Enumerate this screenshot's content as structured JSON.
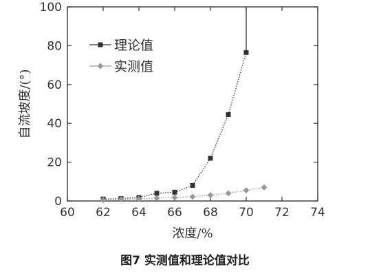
{
  "caption": "图7  实测值和理论值对比",
  "chart_data": {
    "type": "line",
    "xlabel": "浓度/%",
    "ylabel": "自流坡度/(°)",
    "xlim": [
      60,
      74
    ],
    "ylim": [
      0,
      100
    ],
    "xticks": [
      60,
      62,
      64,
      66,
      68,
      70,
      72,
      74
    ],
    "yticks": [
      0,
      20,
      40,
      60,
      80,
      100
    ],
    "legend_position": "top-left",
    "series": [
      {
        "name": "理论值",
        "marker": "square",
        "color": "#333333",
        "points": [
          {
            "x": 62,
            "y": 1.0
          },
          {
            "x": 63,
            "y": 1.2
          },
          {
            "x": 64,
            "y": 1.8
          },
          {
            "x": 65,
            "y": 4.0
          },
          {
            "x": 66,
            "y": 4.5
          },
          {
            "x": 67,
            "y": 8.0
          },
          {
            "x": 68,
            "y": 22.0
          },
          {
            "x": 69,
            "y": 44.5
          },
          {
            "x": 70,
            "y": 76.5
          }
        ],
        "tail": [
          {
            "x": 70,
            "y": 76.5
          },
          {
            "x": 70,
            "y": 100
          }
        ]
      },
      {
        "name": "实测值",
        "marker": "diamond",
        "color": "#999999",
        "points": [
          {
            "x": 62,
            "y": 0.5
          },
          {
            "x": 63,
            "y": 0.8
          },
          {
            "x": 64,
            "y": 1.0
          },
          {
            "x": 65,
            "y": 1.5
          },
          {
            "x": 66,
            "y": 1.8
          },
          {
            "x": 67,
            "y": 2.2
          },
          {
            "x": 68,
            "y": 3.0
          },
          {
            "x": 69,
            "y": 4.0
          },
          {
            "x": 70,
            "y": 5.5
          },
          {
            "x": 71,
            "y": 7.0
          }
        ]
      }
    ]
  }
}
